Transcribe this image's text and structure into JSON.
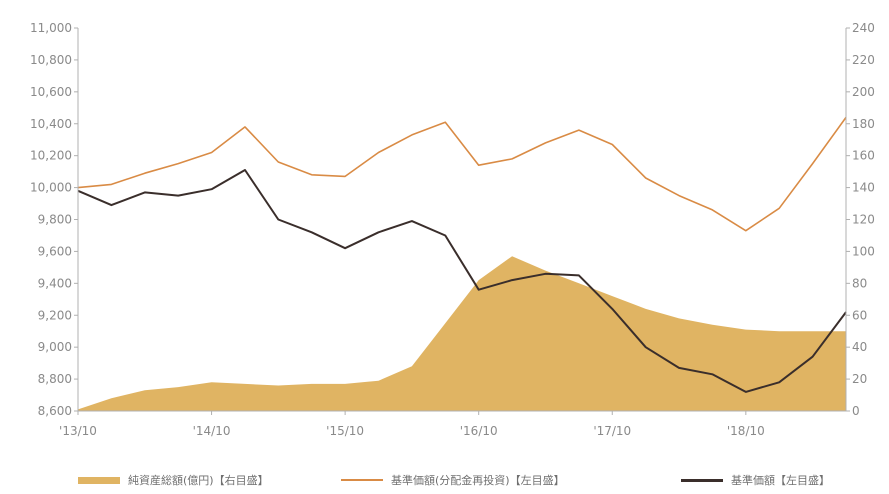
{
  "chart_data": {
    "type": "line",
    "x_axis": {
      "tick_labels": [
        "'13/10",
        "'14/10",
        "'15/10",
        "'16/10",
        "'17/10",
        "'18/10"
      ],
      "range": [
        "2013-10",
        "2019-07"
      ]
    },
    "y_left": {
      "range": [
        8600,
        11000
      ],
      "ticks": [
        "8,600",
        "8,800",
        "9,000",
        "9,200",
        "9,400",
        "9,600",
        "9,800",
        "10,000",
        "10,200",
        "10,400",
        "10,600",
        "10,800",
        "11,000"
      ]
    },
    "y_right": {
      "range": [
        0,
        240
      ],
      "ticks": [
        "0",
        "20",
        "40",
        "60",
        "80",
        "100",
        "120",
        "140",
        "160",
        "180",
        "200",
        "220",
        "240"
      ]
    },
    "grid": false,
    "legend_position": "bottom",
    "colors": {
      "area": "#e0b463",
      "line_reinvested": "#d98b45",
      "line_nav": "#3a2e2b",
      "axis": "#b0b0b0"
    },
    "x": [
      "2013-10",
      "2014-01",
      "2014-04",
      "2014-07",
      "2014-10",
      "2015-01",
      "2015-04",
      "2015-07",
      "2015-10",
      "2016-01",
      "2016-04",
      "2016-07",
      "2016-10",
      "2017-01",
      "2017-04",
      "2017-07",
      "2017-10",
      "2018-01",
      "2018-04",
      "2018-07",
      "2018-10",
      "2019-01",
      "2019-04",
      "2019-07"
    ],
    "series": [
      {
        "name": "純資産総額(億円)【右目盛】",
        "axis": "right",
        "style": "area",
        "values": [
          1,
          8,
          13,
          15,
          18,
          17,
          16,
          17,
          17,
          19,
          28,
          55,
          82,
          97,
          88,
          80,
          72,
          64,
          58,
          54,
          51,
          50,
          50,
          50
        ]
      },
      {
        "name": "基準価額(分配金再投資)【左目盛】",
        "axis": "left",
        "style": "line",
        "values": [
          10000,
          10020,
          10090,
          10150,
          10220,
          10380,
          10160,
          10080,
          10070,
          10220,
          10330,
          10410,
          10140,
          10180,
          10280,
          10360,
          10270,
          10060,
          9950,
          9860,
          9730,
          9870,
          10150,
          10440
        ]
      },
      {
        "name": "基準価額【左目盛】",
        "axis": "left",
        "style": "line",
        "values": [
          9980,
          9890,
          9970,
          9950,
          9990,
          10110,
          9800,
          9720,
          9620,
          9720,
          9790,
          9700,
          9360,
          9420,
          9460,
          9450,
          9240,
          9000,
          8870,
          8830,
          8720,
          8780,
          8940,
          9220
        ]
      }
    ]
  }
}
